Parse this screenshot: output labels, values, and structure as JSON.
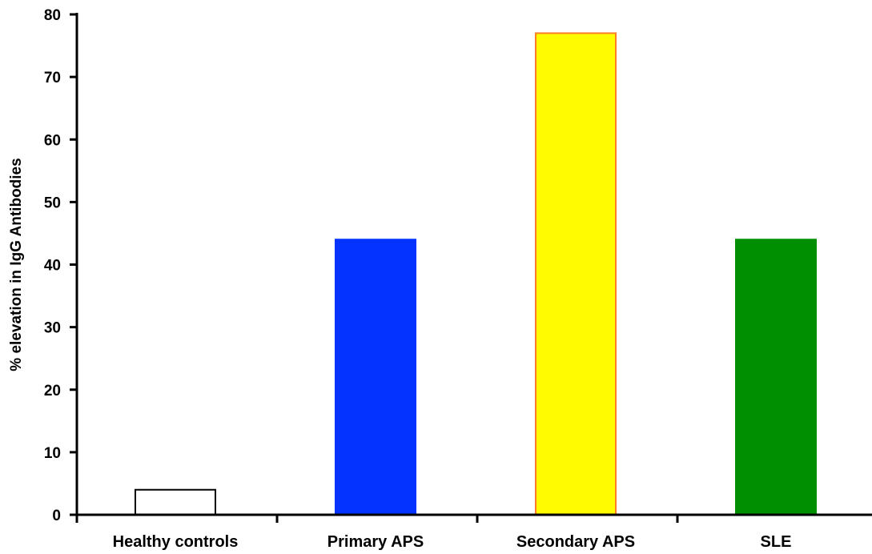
{
  "chart_data": {
    "type": "bar",
    "title": "",
    "xlabel": "",
    "ylabel": "% elevation in IgG  Antibodies",
    "categories": [
      "Healthy controls",
      "Primary APS",
      "Secondary APS",
      "SLE"
    ],
    "values": [
      4,
      44,
      77,
      44
    ],
    "ylim": [
      0,
      80
    ],
    "yticks": [
      "0",
      "10",
      "20",
      "30",
      "40",
      "50",
      "60",
      "70",
      "80"
    ],
    "grid": false,
    "legend": "none",
    "bar_fill_colors": [
      "#ffffff",
      "#0433ff",
      "#fffb00",
      "#008f00"
    ],
    "bar_stroke_colors": [
      "#000000",
      "#0433ff",
      "#ff7f27",
      "#008f00"
    ]
  }
}
